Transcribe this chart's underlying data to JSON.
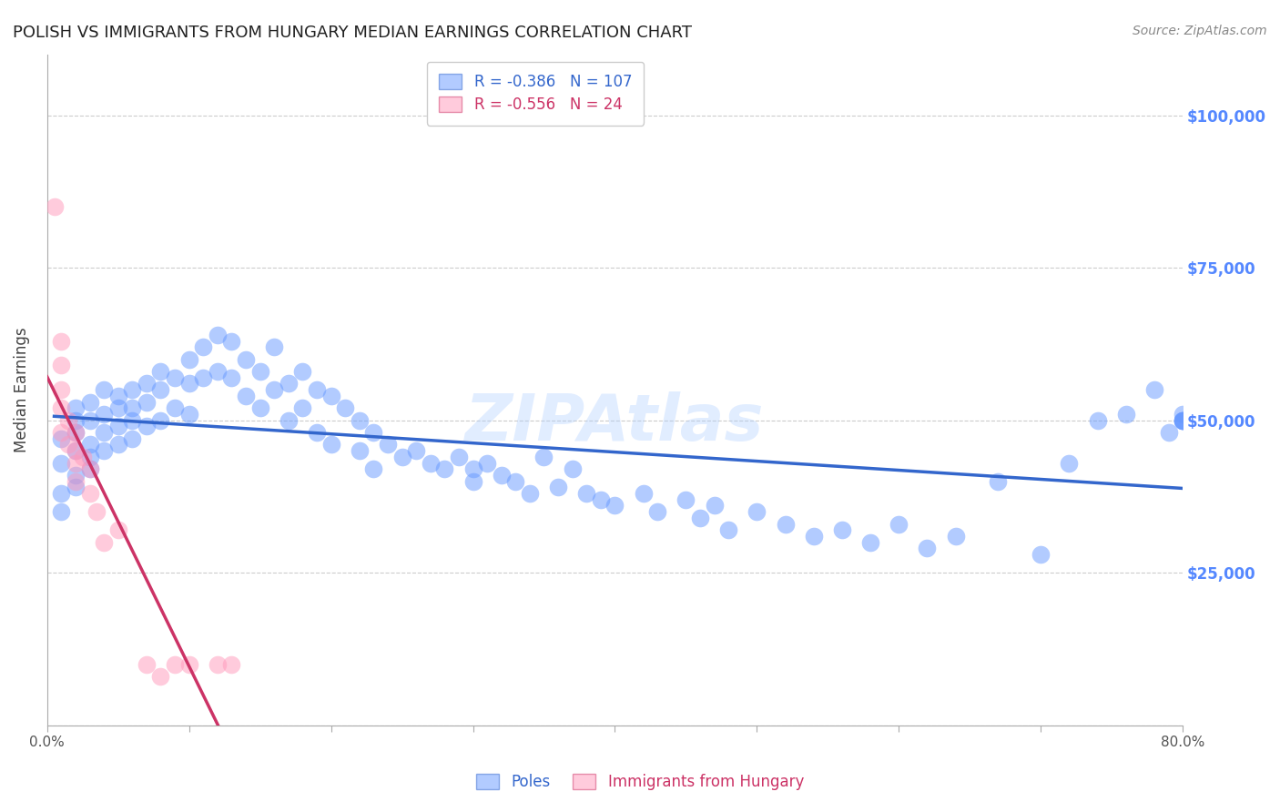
{
  "title": "POLISH VS IMMIGRANTS FROM HUNGARY MEDIAN EARNINGS CORRELATION CHART",
  "source": "Source: ZipAtlas.com",
  "xlabel": "",
  "ylabel": "Median Earnings",
  "xlim": [
    0.0,
    0.8
  ],
  "ylim": [
    0,
    110000
  ],
  "yticks": [
    0,
    25000,
    50000,
    75000,
    100000
  ],
  "ytick_labels": [
    "",
    "$25,000",
    "$50,000",
    "$75,000",
    "$100,000"
  ],
  "xticks": [
    0.0,
    0.1,
    0.2,
    0.3,
    0.4,
    0.5,
    0.6,
    0.7,
    0.8
  ],
  "xtick_labels": [
    "0.0%",
    "",
    "",
    "",
    "",
    "",
    "",
    "",
    "80.0%"
  ],
  "grid_color": "#cccccc",
  "background_color": "#ffffff",
  "blue_color": "#6699ff",
  "pink_color": "#ff99bb",
  "blue_line_color": "#3366cc",
  "pink_line_color": "#cc3366",
  "watermark": "ZIPAtlas",
  "legend_r_blue": "-0.386",
  "legend_n_blue": "107",
  "legend_r_pink": "-0.556",
  "legend_n_pink": "24",
  "legend_label_blue": "Poles",
  "legend_label_pink": "Immigrants from Hungary",
  "poles_x": [
    0.01,
    0.01,
    0.01,
    0.01,
    0.02,
    0.02,
    0.02,
    0.02,
    0.02,
    0.02,
    0.03,
    0.03,
    0.03,
    0.03,
    0.03,
    0.04,
    0.04,
    0.04,
    0.04,
    0.05,
    0.05,
    0.05,
    0.05,
    0.06,
    0.06,
    0.06,
    0.06,
    0.07,
    0.07,
    0.07,
    0.08,
    0.08,
    0.08,
    0.09,
    0.09,
    0.1,
    0.1,
    0.1,
    0.11,
    0.11,
    0.12,
    0.12,
    0.13,
    0.13,
    0.14,
    0.14,
    0.15,
    0.15,
    0.16,
    0.16,
    0.17,
    0.17,
    0.18,
    0.18,
    0.19,
    0.19,
    0.2,
    0.2,
    0.21,
    0.22,
    0.22,
    0.23,
    0.23,
    0.24,
    0.25,
    0.26,
    0.27,
    0.28,
    0.29,
    0.3,
    0.3,
    0.31,
    0.32,
    0.33,
    0.34,
    0.35,
    0.36,
    0.37,
    0.38,
    0.39,
    0.4,
    0.42,
    0.43,
    0.45,
    0.46,
    0.47,
    0.48,
    0.5,
    0.52,
    0.54,
    0.56,
    0.58,
    0.6,
    0.62,
    0.64,
    0.67,
    0.7,
    0.72,
    0.74,
    0.76,
    0.78,
    0.79,
    0.8,
    0.8,
    0.8,
    0.8,
    0.8
  ],
  "poles_y": [
    43000,
    38000,
    47000,
    35000,
    50000,
    48000,
    52000,
    45000,
    41000,
    39000,
    53000,
    50000,
    46000,
    44000,
    42000,
    55000,
    51000,
    48000,
    45000,
    54000,
    52000,
    49000,
    46000,
    55000,
    52000,
    50000,
    47000,
    56000,
    53000,
    49000,
    58000,
    55000,
    50000,
    57000,
    52000,
    60000,
    56000,
    51000,
    62000,
    57000,
    64000,
    58000,
    63000,
    57000,
    60000,
    54000,
    58000,
    52000,
    62000,
    55000,
    56000,
    50000,
    58000,
    52000,
    55000,
    48000,
    54000,
    46000,
    52000,
    50000,
    45000,
    48000,
    42000,
    46000,
    44000,
    45000,
    43000,
    42000,
    44000,
    42000,
    40000,
    43000,
    41000,
    40000,
    38000,
    44000,
    39000,
    42000,
    38000,
    37000,
    36000,
    38000,
    35000,
    37000,
    34000,
    36000,
    32000,
    35000,
    33000,
    31000,
    32000,
    30000,
    33000,
    29000,
    31000,
    40000,
    28000,
    43000,
    50000,
    51000,
    55000,
    48000,
    50000,
    51000,
    50000,
    50000,
    50000
  ],
  "hungary_x": [
    0.005,
    0.01,
    0.01,
    0.01,
    0.01,
    0.01,
    0.015,
    0.015,
    0.02,
    0.02,
    0.02,
    0.02,
    0.025,
    0.03,
    0.03,
    0.035,
    0.04,
    0.05,
    0.07,
    0.08,
    0.09,
    0.1,
    0.12,
    0.13
  ],
  "hungary_y": [
    85000,
    63000,
    59000,
    55000,
    52000,
    48000,
    50000,
    46000,
    48000,
    45000,
    43000,
    40000,
    44000,
    42000,
    38000,
    35000,
    30000,
    32000,
    10000,
    8000,
    10000,
    10000,
    10000,
    10000
  ]
}
